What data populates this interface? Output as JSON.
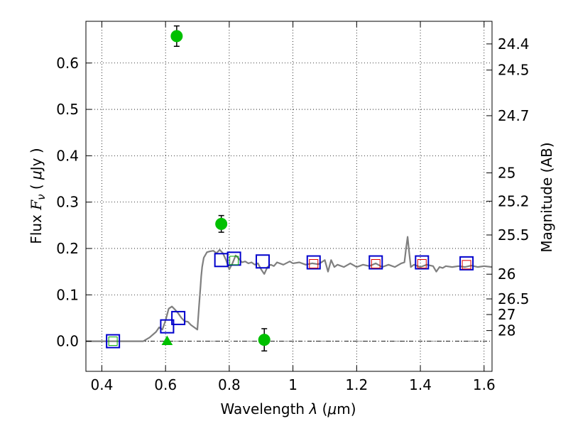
{
  "chart_data": {
    "type": "scatter",
    "title": "",
    "xlabel": "Wavelength  λ (μm)",
    "ylabel_left": "Flux  Fν  ( μJy )",
    "ylabel_left_parts": {
      "pre": "Flux  ",
      "sym": "F",
      "sub": "ν",
      "mid": "  ( ",
      "mu": "μ",
      "post": "Jy )"
    },
    "xlabel_parts": {
      "pre": "Wavelength  ",
      "lambda": "λ",
      "mid": " (",
      "mu": "μ",
      "post": "m)"
    },
    "ylabel_right": "Magnitude (AB)",
    "xlim": [
      0.35,
      1.625
    ],
    "ylim": [
      -0.065,
      0.69
    ],
    "grid": true,
    "x_ticks": [
      {
        "value": 0.4,
        "label": "0.4"
      },
      {
        "value": 0.6,
        "label": "0.6"
      },
      {
        "value": 0.8,
        "label": "0.8"
      },
      {
        "value": 1.0,
        "label": "1"
      },
      {
        "value": 1.2,
        "label": "1.2"
      },
      {
        "value": 1.4,
        "label": "1.4"
      },
      {
        "value": 1.6,
        "label": "1.6"
      }
    ],
    "y_ticks_left": [
      {
        "value": 0.0,
        "label": "0.0"
      },
      {
        "value": 0.1,
        "label": "0.1"
      },
      {
        "value": 0.2,
        "label": "0.2"
      },
      {
        "value": 0.3,
        "label": "0.3"
      },
      {
        "value": 0.4,
        "label": "0.4"
      },
      {
        "value": 0.5,
        "label": "0.5"
      },
      {
        "value": 0.6,
        "label": "0.6"
      }
    ],
    "y_ticks_right": [
      {
        "flux": 0.6412,
        "label": "24.4"
      },
      {
        "flux": 0.5848,
        "label": "24.5"
      },
      {
        "flux": 0.4864,
        "label": "24.7"
      },
      {
        "flux": 0.3631,
        "label": "25"
      },
      {
        "flux": 0.302,
        "label": "25.2"
      },
      {
        "flux": 0.2291,
        "label": "25.5"
      },
      {
        "flux": 0.1445,
        "label": "26"
      },
      {
        "flux": 0.0912,
        "label": "26.5"
      },
      {
        "flux": 0.0575,
        "label": "27"
      },
      {
        "flux": 0.0229,
        "label": "28"
      }
    ],
    "series": [
      {
        "name": "observed photometry",
        "marker": "circle",
        "color": "#00c000",
        "points": [
          {
            "x": 0.635,
            "y": 0.658,
            "err": 0.022
          },
          {
            "x": 0.775,
            "y": 0.253,
            "err": 0.018
          },
          {
            "x": 0.91,
            "y": 0.003,
            "err": 0.024
          }
        ]
      },
      {
        "name": "upper limit",
        "marker": "triangle",
        "color": "#00c000",
        "points": [
          {
            "x": 0.605,
            "y": 0.0
          }
        ]
      },
      {
        "name": "model photometry",
        "marker": "square",
        "color": "#0000cc",
        "points": [
          {
            "x": 0.435,
            "y": 0.0
          },
          {
            "x": 0.605,
            "y": 0.032
          },
          {
            "x": 0.64,
            "y": 0.05
          },
          {
            "x": 0.775,
            "y": 0.175
          },
          {
            "x": 0.815,
            "y": 0.178
          },
          {
            "x": 0.905,
            "y": 0.172
          },
          {
            "x": 1.065,
            "y": 0.17
          },
          {
            "x": 1.26,
            "y": 0.17
          },
          {
            "x": 1.405,
            "y": 0.17
          },
          {
            "x": 1.545,
            "y": 0.168
          }
        ]
      },
      {
        "name": "inner marker green",
        "marker": "square-small",
        "color": "#00aa00",
        "points": [
          {
            "x": 0.435,
            "y": 0.0
          },
          {
            "x": 0.815,
            "y": 0.174
          }
        ]
      },
      {
        "name": "inner marker red",
        "marker": "square-small",
        "color": "#dd0000",
        "points": [
          {
            "x": 1.065,
            "y": 0.167
          },
          {
            "x": 1.26,
            "y": 0.167
          },
          {
            "x": 1.405,
            "y": 0.167
          },
          {
            "x": 1.545,
            "y": 0.165
          }
        ]
      }
    ],
    "model_spectrum": {
      "name": "best-fit SED",
      "color": "#7f7f7f",
      "x": [
        0.35,
        0.45,
        0.53,
        0.55,
        0.57,
        0.58,
        0.59,
        0.6,
        0.61,
        0.62,
        0.63,
        0.64,
        0.65,
        0.66,
        0.67,
        0.68,
        0.69,
        0.7,
        0.705,
        0.71,
        0.712,
        0.715,
        0.72,
        0.73,
        0.74,
        0.75,
        0.76,
        0.77,
        0.78,
        0.79,
        0.8,
        0.81,
        0.82,
        0.83,
        0.84,
        0.85,
        0.86,
        0.87,
        0.88,
        0.89,
        0.9,
        0.91,
        0.92,
        0.93,
        0.94,
        0.95,
        0.97,
        0.99,
        1.0,
        1.02,
        1.04,
        1.06,
        1.08,
        1.1,
        1.11,
        1.12,
        1.13,
        1.14,
        1.16,
        1.18,
        1.2,
        1.22,
        1.24,
        1.26,
        1.28,
        1.3,
        1.32,
        1.34,
        1.35,
        1.355,
        1.36,
        1.365,
        1.37,
        1.38,
        1.4,
        1.42,
        1.44,
        1.45,
        1.46,
        1.47,
        1.48,
        1.5,
        1.52,
        1.54,
        1.56,
        1.58,
        1.6,
        1.625
      ],
      "y": [
        0.0,
        0.0,
        0.0,
        0.008,
        0.02,
        0.03,
        0.025,
        0.045,
        0.07,
        0.075,
        0.068,
        0.06,
        0.05,
        0.043,
        0.042,
        0.035,
        0.03,
        0.025,
        0.075,
        0.12,
        0.14,
        0.16,
        0.18,
        0.192,
        0.194,
        0.195,
        0.19,
        0.197,
        0.19,
        0.175,
        0.155,
        0.168,
        0.185,
        0.178,
        0.17,
        0.172,
        0.168,
        0.17,
        0.165,
        0.168,
        0.155,
        0.145,
        0.16,
        0.165,
        0.162,
        0.17,
        0.165,
        0.172,
        0.168,
        0.17,
        0.165,
        0.168,
        0.166,
        0.175,
        0.15,
        0.175,
        0.16,
        0.165,
        0.16,
        0.168,
        0.16,
        0.165,
        0.162,
        0.168,
        0.16,
        0.165,
        0.16,
        0.168,
        0.17,
        0.2,
        0.225,
        0.19,
        0.16,
        0.165,
        0.16,
        0.165,
        0.162,
        0.15,
        0.16,
        0.158,
        0.162,
        0.16,
        0.162,
        0.16,
        0.163,
        0.16,
        0.162,
        0.16
      ]
    },
    "reference_lines": [
      {
        "name": "zero flux",
        "y": 0.0,
        "style": "dash-dot"
      }
    ]
  }
}
